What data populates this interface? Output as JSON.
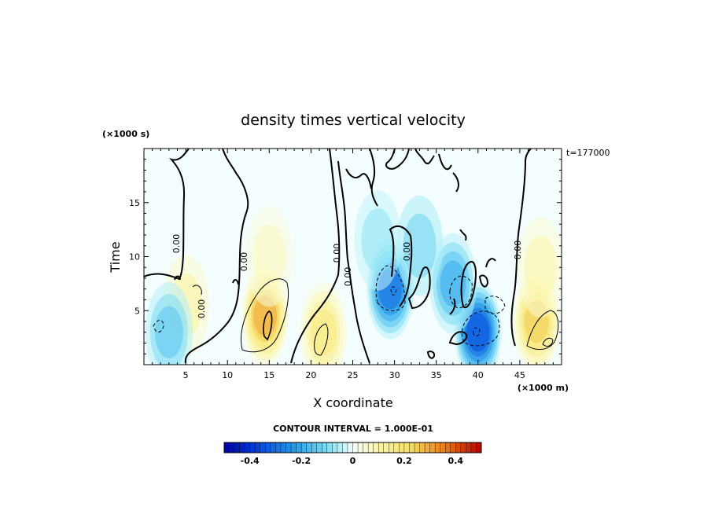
{
  "chart_data": {
    "type": "heatmap",
    "title": "density times vertical velocity",
    "xlabel": "X coordinate",
    "ylabel": "Time",
    "x_unit": "(×1000 m)",
    "y_unit": "(×1000 s)",
    "timestamp": "t=177000",
    "xlim": [
      0,
      50
    ],
    "ylim": [
      0,
      20
    ],
    "x_ticks": [
      5,
      10,
      15,
      20,
      25,
      30,
      35,
      40,
      45
    ],
    "y_ticks": [
      5,
      10,
      15
    ],
    "contour_interval_label": "CONTOUR INTERVAL = 1.000E-01",
    "contour_interval": 0.1,
    "zero_contour_label": "0.00",
    "colorbar": {
      "range": [
        -0.5,
        0.5
      ],
      "ticks": [
        -0.4,
        -0.2,
        0,
        0.2,
        0.4
      ],
      "tick_labels": [
        "-0.4",
        "-0.2",
        "0",
        "0.2",
        "0.4"
      ]
    },
    "features": [
      {
        "x": 14.5,
        "t": 4.5,
        "value": 0.3,
        "sign": "positive"
      },
      {
        "x": 21.5,
        "t": 3.0,
        "value": 0.18,
        "sign": "positive"
      },
      {
        "x": 15.0,
        "t": 10.0,
        "value": 0.08,
        "sign": "positive"
      },
      {
        "x": 47.0,
        "t": 4.0,
        "value": 0.25,
        "sign": "positive"
      },
      {
        "x": 47.5,
        "t": 9.0,
        "value": 0.1,
        "sign": "positive"
      },
      {
        "x": 5.0,
        "t": 5.5,
        "value": 0.12,
        "sign": "positive"
      },
      {
        "x": 3.0,
        "t": 3.0,
        "value": -0.15,
        "sign": "negative"
      },
      {
        "x": 29.5,
        "t": 7.0,
        "value": -0.3,
        "sign": "negative"
      },
      {
        "x": 40.0,
        "t": 3.0,
        "value": -0.35,
        "sign": "negative"
      },
      {
        "x": 37.0,
        "t": 7.5,
        "value": -0.2,
        "sign": "negative"
      },
      {
        "x": 33.0,
        "t": 11.0,
        "value": -0.12,
        "sign": "negative"
      },
      {
        "x": 28.0,
        "t": 11.5,
        "value": -0.08,
        "sign": "negative"
      }
    ]
  }
}
